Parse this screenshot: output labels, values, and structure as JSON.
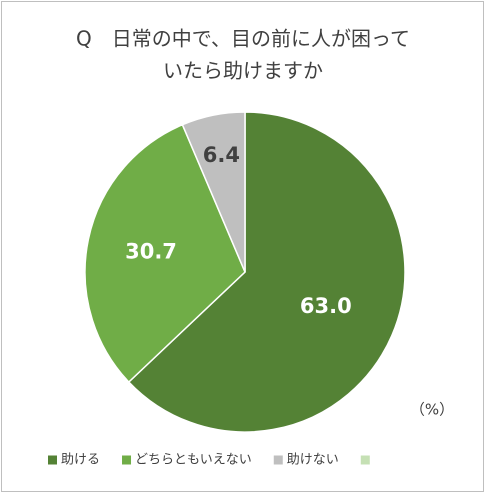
{
  "chart_data": {
    "type": "pie",
    "title": [
      "Q　日常の中で、目の前に人が困って",
      "いたら助けますか"
    ],
    "categories": [
      "助ける",
      "どちらともいえない",
      "助けない",
      null
    ],
    "values": [
      63.0,
      30.7,
      6.4,
      null
    ],
    "value_labels": [
      "63.0",
      "30.7",
      "6.4",
      null
    ],
    "colors": [
      "#548235",
      "#70ad47",
      "#bfbfbf",
      "#c5e0b4"
    ],
    "unit_label": "（%）",
    "legend": "bottom"
  }
}
